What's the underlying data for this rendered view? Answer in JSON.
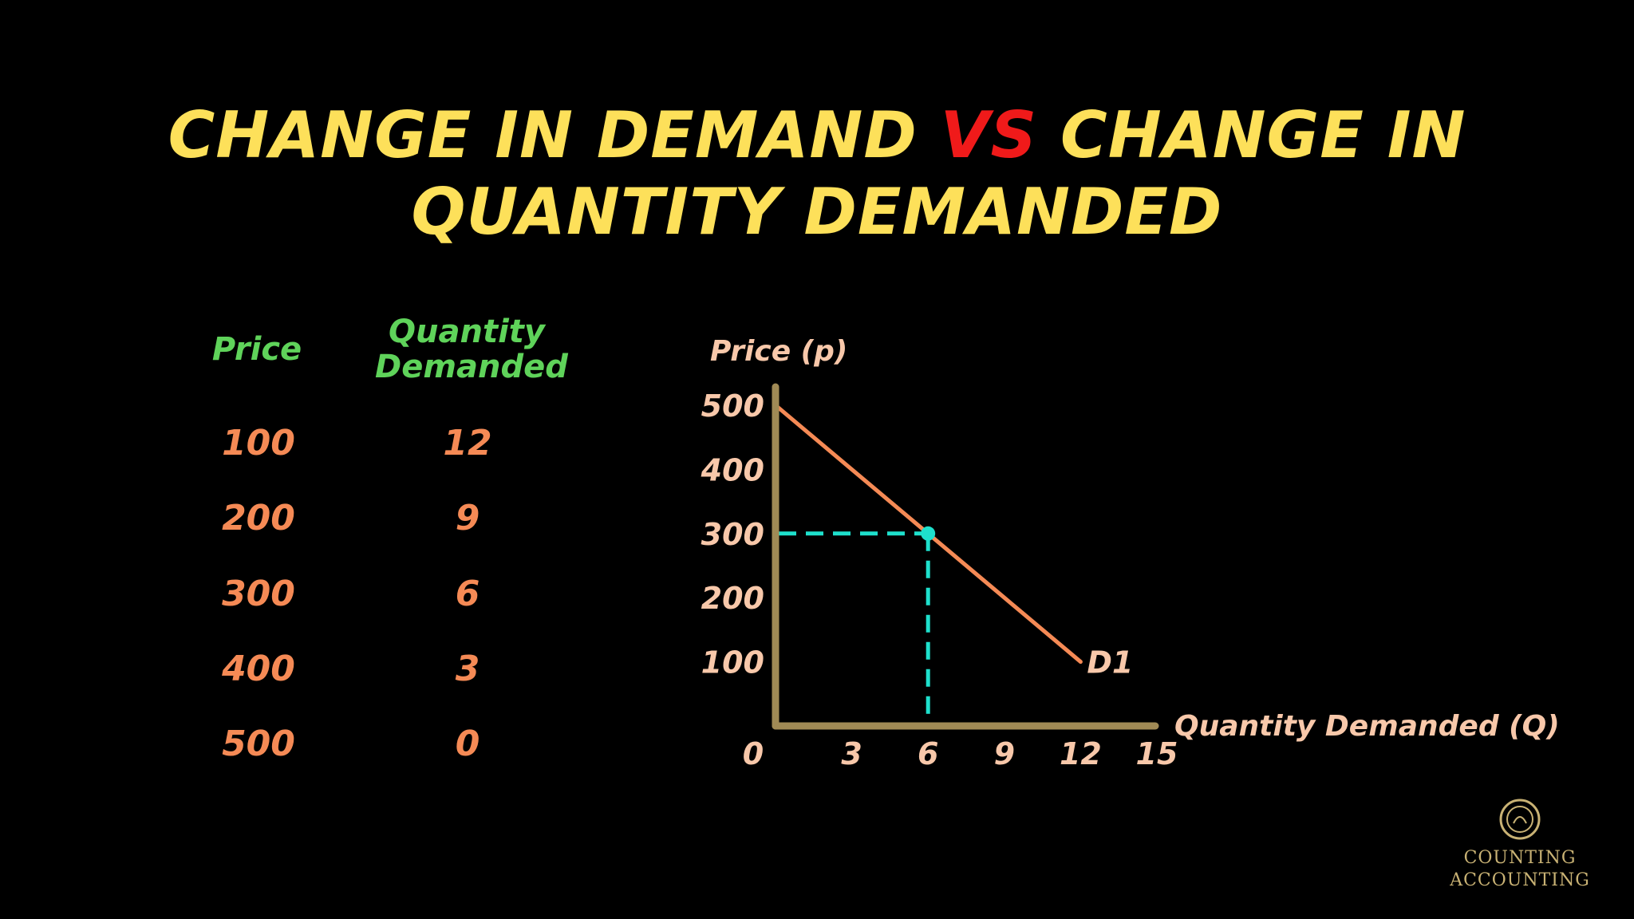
{
  "title": {
    "part1": "CHANGE IN DEMAND ",
    "vs": "VS",
    "part2": " CHANGE IN",
    "line2": "QUANTITY DEMANDED"
  },
  "table": {
    "headers": {
      "price": "Price",
      "quantity_line1": "Quantity",
      "quantity_line2": "Demanded"
    },
    "rows": [
      {
        "price": "100",
        "quantity": "12"
      },
      {
        "price": "200",
        "quantity": "9"
      },
      {
        "price": "300",
        "quantity": "6"
      },
      {
        "price": "400",
        "quantity": "3"
      },
      {
        "price": "500",
        "quantity": "0"
      }
    ]
  },
  "chart_data": {
    "type": "line",
    "ylabel": "Price (p)",
    "xlabel": "Quantity Demanded (Q)",
    "x_ticks": [
      "0",
      "3",
      "6",
      "9",
      "12",
      "15"
    ],
    "y_ticks": [
      "100",
      "200",
      "300",
      "400",
      "500"
    ],
    "xlim": [
      0,
      15
    ],
    "ylim": [
      0,
      500
    ],
    "series": [
      {
        "name": "D1",
        "x": [
          0,
          3,
          6,
          9,
          12
        ],
        "y": [
          500,
          400,
          300,
          200,
          100
        ]
      }
    ],
    "highlight": {
      "x": 6,
      "y": 300
    },
    "colors": {
      "curve": "#f58a55",
      "axis": "#a08a55",
      "highlight": "#1ee0cc"
    }
  },
  "logo": {
    "line1": "COUNTING",
    "line2": "ACCOUNTING"
  }
}
